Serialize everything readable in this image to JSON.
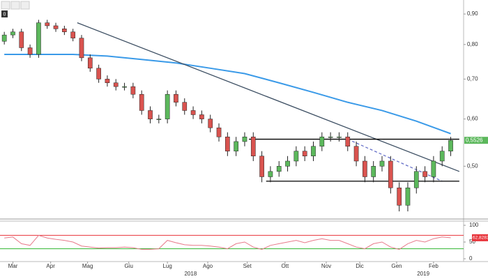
{
  "toolbar": {
    "counter": "0"
  },
  "chart_data": {
    "type": "candlestick",
    "log_scale": true,
    "xlim": [
      -0.5,
      53.5
    ],
    "ylim": [
      0.41,
      0.95
    ],
    "yticks": [
      {
        "value": 0.5,
        "label": "0,50"
      },
      {
        "value": 0.6,
        "label": "0,60"
      },
      {
        "value": 0.7,
        "label": "0,70"
      },
      {
        "value": 0.8,
        "label": "0,80"
      },
      {
        "value": 0.9,
        "label": "0,90"
      }
    ],
    "xticks": [
      {
        "value": 1,
        "label": "Mar"
      },
      {
        "value": 5.4,
        "label": "Apr"
      },
      {
        "value": 9.7,
        "label": "Mag"
      },
      {
        "value": 14.5,
        "label": "Giu"
      },
      {
        "value": 19,
        "label": "Lug"
      },
      {
        "value": 23.7,
        "label": "Ago"
      },
      {
        "value": 28.3,
        "label": "Set"
      },
      {
        "value": 32.7,
        "label": "Ott"
      },
      {
        "value": 37.5,
        "label": "Nov"
      },
      {
        "value": 41.4,
        "label": "Dic"
      },
      {
        "value": 45.7,
        "label": "Gen"
      },
      {
        "value": 50,
        "label": "Feb"
      }
    ],
    "year_ticks": [
      {
        "value": 21.7,
        "label": "2018"
      },
      {
        "value": 48.8,
        "label": "2019"
      }
    ],
    "up_color": "#5cb85c",
    "down_color": "#d9534f",
    "open": [
      0.81,
      0.83,
      0.84,
      0.79,
      0.77,
      0.87,
      0.86,
      0.85,
      0.84,
      0.82,
      0.76,
      0.73,
      0.7,
      0.69,
      0.68,
      0.68,
      0.66,
      0.62,
      0.6,
      0.6,
      0.66,
      0.64,
      0.62,
      0.61,
      0.6,
      0.58,
      0.56,
      0.53,
      0.55,
      0.56,
      0.52,
      0.48,
      0.49,
      0.5,
      0.51,
      0.53,
      0.52,
      0.54,
      0.56,
      0.56,
      0.56,
      0.54,
      0.51,
      0.48,
      0.5,
      0.51,
      0.46,
      0.43,
      0.46,
      0.49,
      0.48,
      0.51,
      0.53
    ],
    "high": [
      0.84,
      0.85,
      0.85,
      0.8,
      0.88,
      0.88,
      0.87,
      0.86,
      0.85,
      0.83,
      0.77,
      0.74,
      0.71,
      0.7,
      0.69,
      0.69,
      0.67,
      0.63,
      0.61,
      0.67,
      0.67,
      0.65,
      0.63,
      0.62,
      0.61,
      0.59,
      0.57,
      0.56,
      0.57,
      0.57,
      0.53,
      0.5,
      0.51,
      0.52,
      0.54,
      0.54,
      0.55,
      0.57,
      0.57,
      0.57,
      0.57,
      0.55,
      0.52,
      0.51,
      0.52,
      0.52,
      0.47,
      0.47,
      0.5,
      0.5,
      0.52,
      0.54,
      0.56
    ],
    "low": [
      0.8,
      0.82,
      0.78,
      0.76,
      0.76,
      0.85,
      0.84,
      0.83,
      0.81,
      0.75,
      0.72,
      0.69,
      0.68,
      0.67,
      0.67,
      0.65,
      0.61,
      0.59,
      0.59,
      0.59,
      0.63,
      0.61,
      0.6,
      0.59,
      0.57,
      0.55,
      0.52,
      0.52,
      0.54,
      0.51,
      0.47,
      0.47,
      0.48,
      0.49,
      0.5,
      0.51,
      0.51,
      0.53,
      0.55,
      0.55,
      0.53,
      0.5,
      0.47,
      0.47,
      0.49,
      0.45,
      0.42,
      0.42,
      0.45,
      0.47,
      0.47,
      0.5,
      0.52
    ],
    "close": [
      0.83,
      0.84,
      0.79,
      0.77,
      0.87,
      0.86,
      0.85,
      0.84,
      0.82,
      0.76,
      0.73,
      0.7,
      0.69,
      0.68,
      0.68,
      0.66,
      0.62,
      0.6,
      0.6,
      0.66,
      0.64,
      0.62,
      0.61,
      0.6,
      0.58,
      0.56,
      0.53,
      0.55,
      0.56,
      0.52,
      0.48,
      0.49,
      0.5,
      0.51,
      0.53,
      0.52,
      0.54,
      0.56,
      0.56,
      0.56,
      0.54,
      0.51,
      0.48,
      0.5,
      0.51,
      0.46,
      0.43,
      0.46,
      0.49,
      0.48,
      0.51,
      0.53,
      0.5526
    ],
    "last_close_label": "0,5526",
    "moving_average": {
      "color": "#3a9ae8",
      "x": [
        0,
        4,
        8,
        12,
        16,
        20,
        24,
        28,
        32,
        36,
        40,
        44,
        48,
        52
      ],
      "values": [
        0.77,
        0.77,
        0.77,
        0.765,
        0.755,
        0.745,
        0.73,
        0.715,
        0.69,
        0.665,
        0.64,
        0.62,
        0.595,
        0.567
      ]
    },
    "trendlines": [
      {
        "x": [
          8.5,
          53
        ],
        "values": [
          0.87,
          0.49
        ],
        "style": "solid",
        "color": "#3d4f63"
      },
      {
        "x": [
          40,
          51
        ],
        "values": [
          0.555,
          0.472
        ],
        "style": "dashed",
        "color": "#6670c8"
      },
      {
        "x": [
          28.5,
          53
        ],
        "values": [
          0.555,
          0.555
        ],
        "style": "solid",
        "color": "#000000"
      },
      {
        "x": [
          30.5,
          53
        ],
        "values": [
          0.472,
          0.472
        ],
        "style": "solid",
        "color": "#000000"
      }
    ],
    "rsi": {
      "color": "#e87a8a",
      "ylim": [
        0,
        100
      ],
      "yticks": [
        0,
        50,
        100
      ],
      "levels": [
        {
          "value": 70,
          "color": "#e8333a"
        },
        {
          "value": 30,
          "color": "#2fb52f"
        }
      ],
      "values": [
        62,
        65,
        45,
        40,
        70,
        62,
        58,
        55,
        50,
        38,
        35,
        32,
        33,
        33,
        35,
        33,
        28,
        28,
        30,
        55,
        48,
        42,
        40,
        40,
        38,
        35,
        30,
        45,
        50,
        35,
        28,
        40,
        45,
        50,
        55,
        48,
        55,
        60,
        55,
        55,
        45,
        35,
        30,
        45,
        50,
        35,
        28,
        45,
        55,
        50,
        60,
        65,
        62.8283
      ],
      "last_label": "62,8283"
    }
  }
}
